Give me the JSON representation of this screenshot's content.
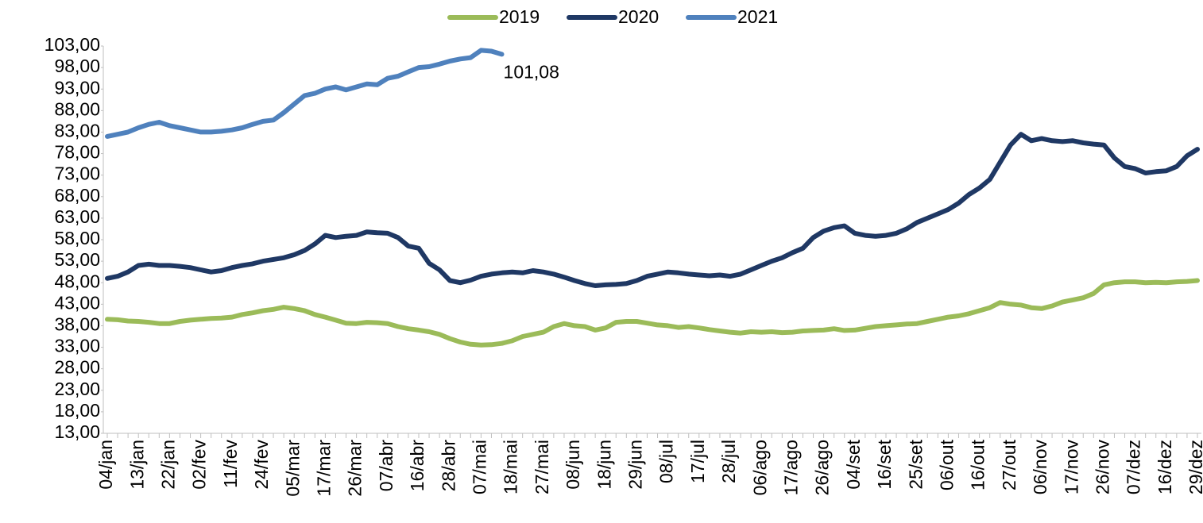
{
  "chart_data": {
    "type": "line",
    "categories": [
      "04/jan",
      null,
      null,
      "13/jan",
      null,
      null,
      "22/jan",
      null,
      null,
      "02/fev",
      null,
      null,
      "11/fev",
      null,
      null,
      "24/fev",
      null,
      null,
      "05/mar",
      null,
      null,
      "17/mar",
      null,
      null,
      "26/mar",
      null,
      null,
      "07/abr",
      null,
      null,
      "16/abr",
      null,
      null,
      "28/abr",
      null,
      null,
      "07/mai",
      null,
      null,
      "18/mai",
      null,
      null,
      "27/mai",
      null,
      null,
      "08/jun",
      null,
      null,
      "18/jun",
      null,
      null,
      "29/jun",
      null,
      null,
      "08/jul",
      null,
      null,
      "17/jul",
      null,
      null,
      "28/jul",
      null,
      null,
      "06/ago",
      null,
      null,
      "17/ago",
      null,
      null,
      "26/ago",
      null,
      null,
      "04/set",
      null,
      null,
      "16/set",
      null,
      null,
      "25/set",
      null,
      null,
      "06/out",
      null,
      null,
      "16/out",
      null,
      null,
      "27/out",
      null,
      null,
      "06/nov",
      null,
      null,
      "17/nov",
      null,
      null,
      "26/nov",
      null,
      null,
      "07/dez",
      null,
      null,
      "16/dez",
      null,
      null,
      "29/dez"
    ],
    "series": [
      {
        "name": "2019",
        "color": "#9bbb59",
        "values": [
          39.5,
          39.4,
          39.1,
          39,
          38.8,
          38.5,
          38.5,
          39,
          39.3,
          39.5,
          39.7,
          39.8,
          40,
          40.6,
          41,
          41.5,
          41.8,
          42.3,
          42,
          41.5,
          40.6,
          40,
          39.3,
          38.6,
          38.5,
          38.8,
          38.7,
          38.5,
          37.8,
          37.3,
          37,
          36.6,
          36,
          35,
          34.2,
          33.7,
          33.5,
          33.6,
          33.9,
          34.5,
          35.5,
          36,
          36.5,
          37.8,
          38.5,
          38,
          37.8,
          37,
          37.5,
          38.8,
          39,
          39,
          38.6,
          38.2,
          38,
          37.6,
          37.8,
          37.5,
          37.1,
          36.8,
          36.5,
          36.3,
          36.6,
          36.5,
          36.6,
          36.4,
          36.5,
          36.8,
          36.9,
          37,
          37.3,
          36.9,
          37,
          37.4,
          37.8,
          38,
          38.2,
          38.4,
          38.5,
          39,
          39.5,
          40,
          40.3,
          40.8,
          41.5,
          42.2,
          43.4,
          43,
          42.8,
          42.2,
          42,
          42.6,
          43.5,
          44,
          44.5,
          45.5,
          47.5,
          48,
          48.2,
          48.2,
          48,
          48.1,
          48,
          48.2,
          48.3,
          48.5
        ]
      },
      {
        "name": "2020",
        "color": "#1f3864",
        "values": [
          49,
          49.5,
          50.5,
          52,
          52.3,
          52,
          52,
          51.8,
          51.5,
          51,
          50.5,
          50.8,
          51.5,
          52,
          52.4,
          53,
          53.4,
          53.8,
          54.5,
          55.5,
          57,
          59,
          58.5,
          58.8,
          59,
          59.8,
          59.6,
          59.5,
          58.5,
          56.5,
          56,
          52.5,
          51,
          48.5,
          48,
          48.6,
          49.5,
          50,
          50.3,
          50.5,
          50.3,
          50.8,
          50.5,
          50,
          49.3,
          48.5,
          47.8,
          47.3,
          47.5,
          47.6,
          47.8,
          48.5,
          49.5,
          50,
          50.5,
          50.3,
          50,
          49.8,
          49.6,
          49.8,
          49.5,
          50,
          51,
          52,
          53,
          53.8,
          55,
          56,
          58.5,
          60,
          60.8,
          61.2,
          59.5,
          59,
          58.8,
          59,
          59.5,
          60.5,
          62,
          63,
          64,
          65,
          66.5,
          68.5,
          70,
          72,
          76,
          80,
          82.5,
          81,
          81.5,
          81,
          80.8,
          81,
          80.5,
          80.2,
          80,
          77,
          75,
          74.5,
          73.5,
          73.8,
          74,
          75,
          77.5,
          79
        ]
      },
      {
        "name": "2021",
        "color": "#4f81bd",
        "values": [
          82,
          82.5,
          83,
          84,
          84.8,
          85.3,
          84.5,
          84,
          83.5,
          83,
          83,
          83.2,
          83.5,
          84,
          84.8,
          85.5,
          85.8,
          87.5,
          89.5,
          91.5,
          92,
          93,
          93.5,
          92.8,
          93.5,
          94.2,
          94,
          95.5,
          96,
          97,
          98,
          98.2,
          98.8,
          99.5,
          100,
          100.3,
          102,
          101.8,
          101.08,
          null,
          null,
          null,
          null,
          null,
          null,
          null,
          null,
          null,
          null,
          null,
          null,
          null,
          null,
          null,
          null,
          null,
          null,
          null,
          null,
          null,
          null,
          null,
          null,
          null,
          null,
          null,
          null,
          null,
          null,
          null,
          null,
          null,
          null,
          null,
          null,
          null,
          null,
          null,
          null,
          null,
          null,
          null,
          null,
          null,
          null,
          null,
          null,
          null,
          null,
          null,
          null,
          null,
          null,
          null,
          null,
          null,
          null,
          null,
          null,
          null,
          null,
          null,
          null,
          null,
          null,
          null
        ],
        "value_labels": [
          null,
          null,
          null,
          null,
          null,
          null,
          null,
          null,
          null,
          null,
          null,
          null,
          null,
          null,
          null,
          null,
          null,
          null,
          null,
          null,
          null,
          null,
          null,
          null,
          null,
          null,
          null,
          null,
          null,
          null,
          null,
          null,
          null,
          null,
          null,
          null,
          null,
          null,
          "101,08",
          null,
          null,
          null,
          null,
          null,
          null,
          null,
          null,
          null,
          null,
          null,
          null,
          null,
          null,
          null,
          null,
          null,
          null,
          null,
          null,
          null,
          null,
          null,
          null,
          null,
          null,
          null,
          null,
          null,
          null,
          null,
          null,
          null,
          null,
          null,
          null,
          null,
          null,
          null,
          null,
          null,
          null,
          null,
          null,
          null,
          null,
          null,
          null,
          null,
          null,
          null,
          null,
          null,
          null,
          null,
          null,
          null,
          null,
          null,
          null,
          null,
          null,
          null,
          null,
          null,
          null,
          null
        ]
      }
    ],
    "ylim": [
      13,
      103
    ],
    "yticks": [
      {
        "value": 13,
        "label": "13,00"
      },
      {
        "value": 18,
        "label": "18,00"
      },
      {
        "value": 23,
        "label": "23,00"
      },
      {
        "value": 28,
        "label": "28,00"
      },
      {
        "value": 33,
        "label": "33,00"
      },
      {
        "value": 38,
        "label": "38,00"
      },
      {
        "value": 43,
        "label": "43,00"
      },
      {
        "value": 48,
        "label": "48,00"
      },
      {
        "value": 53,
        "label": "53,00"
      },
      {
        "value": 58,
        "label": "58,00"
      },
      {
        "value": 63,
        "label": "63,00"
      },
      {
        "value": 68,
        "label": "68,00"
      },
      {
        "value": 73,
        "label": "73,00"
      },
      {
        "value": 78,
        "label": "78,00"
      },
      {
        "value": 83,
        "label": "83,00"
      },
      {
        "value": 88,
        "label": "88,00"
      },
      {
        "value": 93,
        "label": "93,00"
      },
      {
        "value": 98,
        "label": "98,00"
      },
      {
        "value": 103,
        "label": "103,00"
      }
    ],
    "grid": false,
    "legend": "top"
  }
}
